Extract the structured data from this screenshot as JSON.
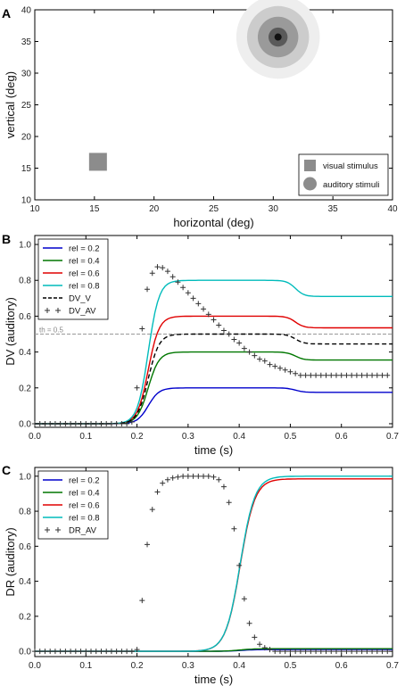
{
  "chart_data": [
    {
      "panel": "A",
      "type": "scatter",
      "xlabel": "horizontal (deg)",
      "ylabel": "vertical (deg)",
      "xlim": [
        10,
        40
      ],
      "ylim": [
        10,
        40
      ],
      "xticks": [
        "10",
        "15",
        "20",
        "25",
        "30",
        "35",
        "40"
      ],
      "yticks": [
        "10",
        "15",
        "20",
        "25",
        "30",
        "35",
        "40"
      ],
      "visual_stimulus": {
        "x": 15.3,
        "y": 16.0,
        "color": "#8c8c8c"
      },
      "auditory_stimulus": {
        "x": 30.4,
        "y": 35.7,
        "rings": [
          3.5,
          2.6,
          1.7,
          0.8,
          0.3
        ],
        "colors": [
          "#eeeeee",
          "#cccccc",
          "#9a9a9a",
          "#5a5a5a",
          "#111111"
        ]
      },
      "legend": {
        "position": "lower-right",
        "entries": [
          "visual stimulus",
          "auditory stimuli"
        ]
      }
    },
    {
      "panel": "B",
      "type": "line",
      "xlabel": "time (s)",
      "ylabel": "DV (auditory)",
      "xlim": [
        0.0,
        0.7
      ],
      "ylim": [
        -0.02,
        1.05
      ],
      "xticks": [
        "0.0",
        "0.1",
        "0.2",
        "0.3",
        "0.4",
        "0.5",
        "0.6",
        "0.7"
      ],
      "yticks": [
        "0.0",
        "0.2",
        "0.4",
        "0.6",
        "0.8",
        "1.0"
      ],
      "threshold": {
        "value": 0.5,
        "label": "th = 0.5"
      },
      "legend": {
        "position": "top-left"
      },
      "series": [
        {
          "name": "rel = 0.2",
          "color": "#0000cc",
          "style": "solid",
          "plateau": 0.2,
          "final": 0.175
        },
        {
          "name": "rel = 0.4",
          "color": "#007700",
          "style": "solid",
          "plateau": 0.4,
          "final": 0.355
        },
        {
          "name": "rel = 0.6",
          "color": "#e00000",
          "style": "solid",
          "plateau": 0.6,
          "final": 0.535
        },
        {
          "name": "rel = 0.8",
          "color": "#00bbbb",
          "style": "solid",
          "plateau": 0.8,
          "final": 0.71
        },
        {
          "name": "DV_V",
          "color": "#000000",
          "style": "dashed",
          "plateau": 0.5,
          "final": 0.445
        }
      ],
      "markers": {
        "name": "DV_AV",
        "color": "#333333",
        "points": [
          [
            0.0,
            0.0
          ],
          [
            0.01,
            0.0
          ],
          [
            0.02,
            0.0
          ],
          [
            0.03,
            0.0
          ],
          [
            0.04,
            0.0
          ],
          [
            0.05,
            0.0
          ],
          [
            0.06,
            0.0
          ],
          [
            0.07,
            0.0
          ],
          [
            0.08,
            0.0
          ],
          [
            0.09,
            0.0
          ],
          [
            0.1,
            0.0
          ],
          [
            0.11,
            0.0
          ],
          [
            0.12,
            0.0
          ],
          [
            0.13,
            0.0
          ],
          [
            0.14,
            0.0
          ],
          [
            0.15,
            0.0
          ],
          [
            0.16,
            0.0
          ],
          [
            0.17,
            0.0
          ],
          [
            0.18,
            0.0
          ],
          [
            0.19,
            0.01
          ],
          [
            0.2,
            0.2
          ],
          [
            0.21,
            0.53
          ],
          [
            0.22,
            0.75
          ],
          [
            0.23,
            0.84
          ],
          [
            0.24,
            0.875
          ],
          [
            0.25,
            0.87
          ],
          [
            0.26,
            0.85
          ],
          [
            0.27,
            0.82
          ],
          [
            0.28,
            0.79
          ],
          [
            0.29,
            0.76
          ],
          [
            0.3,
            0.73
          ],
          [
            0.31,
            0.7
          ],
          [
            0.32,
            0.67
          ],
          [
            0.33,
            0.64
          ],
          [
            0.34,
            0.61
          ],
          [
            0.35,
            0.58
          ],
          [
            0.36,
            0.55
          ],
          [
            0.37,
            0.52
          ],
          [
            0.38,
            0.5
          ],
          [
            0.39,
            0.47
          ],
          [
            0.4,
            0.45
          ],
          [
            0.41,
            0.42
          ],
          [
            0.42,
            0.4
          ],
          [
            0.43,
            0.38
          ],
          [
            0.44,
            0.36
          ],
          [
            0.45,
            0.35
          ],
          [
            0.46,
            0.33
          ],
          [
            0.47,
            0.32
          ],
          [
            0.48,
            0.31
          ],
          [
            0.49,
            0.3
          ],
          [
            0.5,
            0.29
          ],
          [
            0.51,
            0.28
          ],
          [
            0.52,
            0.27
          ],
          [
            0.53,
            0.27
          ],
          [
            0.54,
            0.27
          ],
          [
            0.55,
            0.27
          ],
          [
            0.56,
            0.27
          ],
          [
            0.57,
            0.27
          ],
          [
            0.58,
            0.27
          ],
          [
            0.59,
            0.27
          ],
          [
            0.6,
            0.27
          ],
          [
            0.61,
            0.27
          ],
          [
            0.62,
            0.27
          ],
          [
            0.63,
            0.27
          ],
          [
            0.64,
            0.27
          ],
          [
            0.65,
            0.27
          ],
          [
            0.66,
            0.27
          ],
          [
            0.67,
            0.27
          ],
          [
            0.68,
            0.27
          ],
          [
            0.69,
            0.27
          ]
        ]
      }
    },
    {
      "panel": "C",
      "type": "line",
      "xlabel": "time (s)",
      "ylabel": "DR (auditory)",
      "xlim": [
        0.0,
        0.7
      ],
      "ylim": [
        -0.03,
        1.05
      ],
      "xticks": [
        "0.0",
        "0.1",
        "0.2",
        "0.3",
        "0.4",
        "0.5",
        "0.6",
        "0.7"
      ],
      "yticks": [
        "0.0",
        "0.2",
        "0.4",
        "0.6",
        "0.8",
        "1.0"
      ],
      "legend": {
        "position": "top-left"
      },
      "series": [
        {
          "name": "rel = 0.2",
          "color": "#0000cc",
          "style": "solid",
          "final": 0.01
        },
        {
          "name": "rel = 0.4",
          "color": "#007700",
          "style": "solid",
          "final": 0.015
        },
        {
          "name": "rel = 0.6",
          "color": "#e00000",
          "style": "solid",
          "final": 0.985
        },
        {
          "name": "rel = 0.8",
          "color": "#00bbbb",
          "style": "solid",
          "final": 1.0
        }
      ],
      "markers": {
        "name": "DR_AV",
        "color": "#333333",
        "points": [
          [
            0.0,
            0.0
          ],
          [
            0.01,
            0.0
          ],
          [
            0.02,
            0.0
          ],
          [
            0.03,
            0.0
          ],
          [
            0.04,
            0.0
          ],
          [
            0.05,
            0.0
          ],
          [
            0.06,
            0.0
          ],
          [
            0.07,
            0.0
          ],
          [
            0.08,
            0.0
          ],
          [
            0.09,
            0.0
          ],
          [
            0.1,
            0.0
          ],
          [
            0.11,
            0.0
          ],
          [
            0.12,
            0.0
          ],
          [
            0.13,
            0.0
          ],
          [
            0.14,
            0.0
          ],
          [
            0.15,
            0.0
          ],
          [
            0.16,
            0.0
          ],
          [
            0.17,
            0.0
          ],
          [
            0.18,
            0.0
          ],
          [
            0.19,
            0.0
          ],
          [
            0.2,
            0.01
          ],
          [
            0.21,
            0.29
          ],
          [
            0.22,
            0.61
          ],
          [
            0.23,
            0.81
          ],
          [
            0.24,
            0.91
          ],
          [
            0.25,
            0.96
          ],
          [
            0.26,
            0.98
          ],
          [
            0.27,
            0.99
          ],
          [
            0.28,
            0.995
          ],
          [
            0.29,
            1.0
          ],
          [
            0.3,
            1.0
          ],
          [
            0.31,
            1.0
          ],
          [
            0.32,
            1.0
          ],
          [
            0.33,
            1.0
          ],
          [
            0.34,
            1.0
          ],
          [
            0.35,
            0.995
          ],
          [
            0.36,
            0.98
          ],
          [
            0.37,
            0.94
          ],
          [
            0.38,
            0.85
          ],
          [
            0.39,
            0.7
          ],
          [
            0.4,
            0.49
          ],
          [
            0.41,
            0.3
          ],
          [
            0.42,
            0.16
          ],
          [
            0.43,
            0.08
          ],
          [
            0.44,
            0.04
          ],
          [
            0.45,
            0.02
          ],
          [
            0.46,
            0.01
          ],
          [
            0.47,
            0.0
          ],
          [
            0.48,
            0.0
          ],
          [
            0.49,
            0.0
          ],
          [
            0.5,
            0.0
          ],
          [
            0.51,
            0.0
          ],
          [
            0.52,
            0.0
          ],
          [
            0.53,
            0.0
          ],
          [
            0.54,
            0.0
          ],
          [
            0.55,
            0.0
          ],
          [
            0.56,
            0.0
          ],
          [
            0.57,
            0.0
          ],
          [
            0.58,
            0.0
          ],
          [
            0.59,
            0.0
          ],
          [
            0.6,
            0.0
          ],
          [
            0.61,
            0.0
          ],
          [
            0.62,
            0.0
          ],
          [
            0.63,
            0.0
          ],
          [
            0.64,
            0.0
          ],
          [
            0.65,
            0.0
          ],
          [
            0.66,
            0.0
          ],
          [
            0.67,
            0.0
          ],
          [
            0.68,
            0.0
          ],
          [
            0.69,
            0.0
          ]
        ]
      }
    }
  ]
}
